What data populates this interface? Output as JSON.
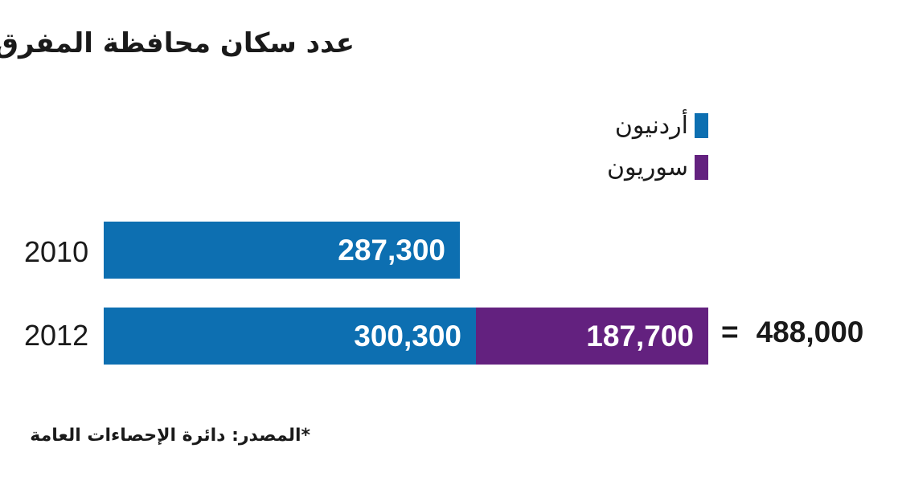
{
  "chart_data": {
    "type": "bar",
    "orientation": "horizontal",
    "stacked": true,
    "title": "عدد سكان محافظة المفرق",
    "categories": [
      "2010",
      "2012"
    ],
    "series": [
      {
        "name": "أردنيون",
        "color": "#0d6fb1",
        "values": [
          287300,
          300300
        ]
      },
      {
        "name": "سوريون",
        "color": "#63217f",
        "values": [
          null,
          187700
        ]
      }
    ],
    "value_labels": [
      [
        "287,300",
        null
      ],
      [
        "300,300",
        "187,700"
      ]
    ],
    "totals": [
      null,
      {
        "equals": "=",
        "value": "488,000"
      }
    ],
    "xlim": [
      0,
      488000
    ],
    "grid": false,
    "legend_position": "top-right",
    "source": "*المصدر: دائرة الإحصاءات العامة"
  }
}
